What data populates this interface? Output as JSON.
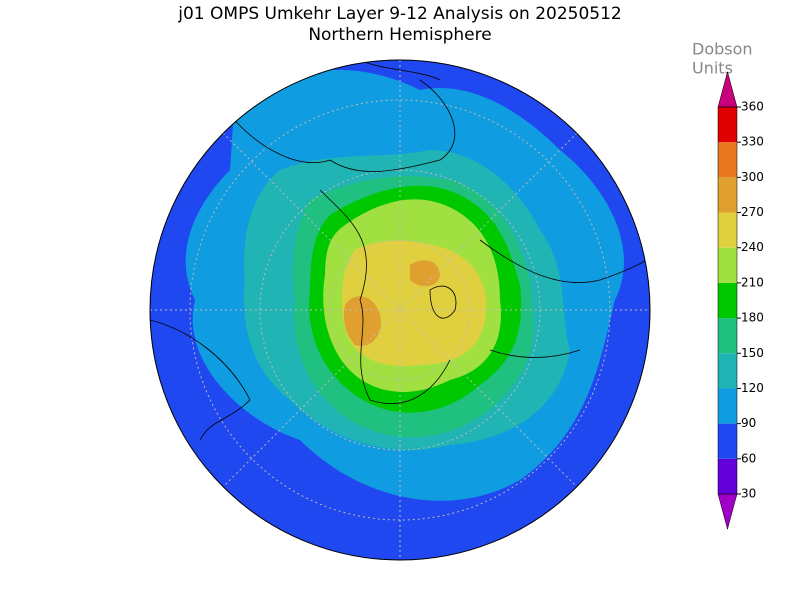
{
  "title": "j01 OMPS Umkehr Layer 9-12 Analysis on 20250512",
  "subtitle": "Northern Hemisphere",
  "colorbar": {
    "label": [
      "Dobson",
      "Units"
    ],
    "ticks": [
      30,
      60,
      90,
      120,
      150,
      180,
      210,
      240,
      270,
      300,
      330,
      360
    ],
    "colors": [
      "#a000c8",
      "#6400d8",
      "#2048f0",
      "#109ce0",
      "#20b4b4",
      "#20c080",
      "#00c800",
      "#a0e040",
      "#e0d040",
      "#e0a030",
      "#e87820",
      "#e00000",
      "#c8007c"
    ]
  }
}
